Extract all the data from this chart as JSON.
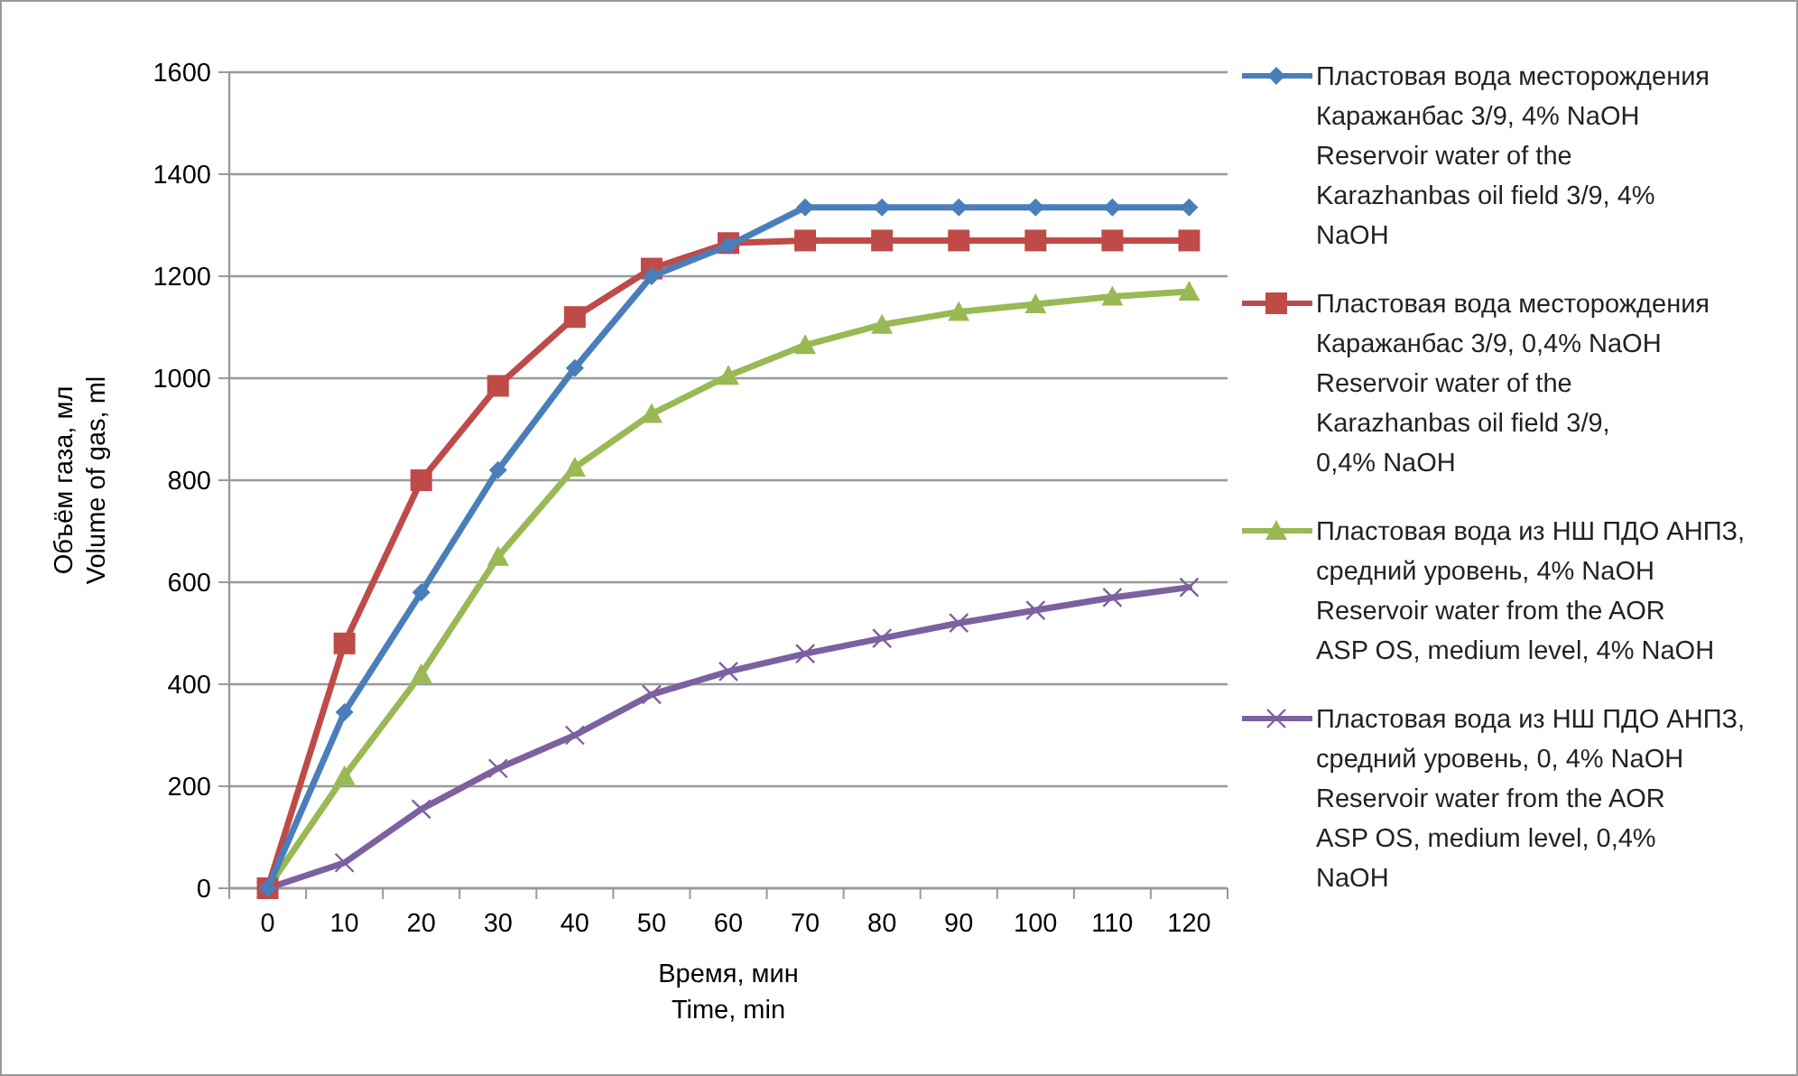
{
  "chart_data": {
    "type": "line",
    "xlabel": "Время, мин\nTime, min",
    "ylabel": "Объём газа, мл\nVolume of gas, ml",
    "categories": [
      "0",
      "10",
      "20",
      "30",
      "40",
      "50",
      "60",
      "70",
      "80",
      "90",
      "100",
      "110",
      "120"
    ],
    "ylim": [
      0,
      1600
    ],
    "yticks": [
      0,
      200,
      400,
      600,
      800,
      1000,
      1200,
      1400,
      1600
    ],
    "grid": "y",
    "legend": "right",
    "series": [
      {
        "name": "Пластовая вода месторождения Каражанбас 3/9, 4% NaOH\nReservoir water of the Karazhanbas oil field 3/9, 4% NaOH",
        "color": "#4a7ebb",
        "marker": "diamond",
        "values": [
          0,
          345,
          580,
          820,
          1020,
          1200,
          1260,
          1335,
          1335,
          1335,
          1335,
          1335,
          1335
        ]
      },
      {
        "name": "Пластовая вода месторождения Каражанбас 3/9, 0,4% NaOH\nReservoir water of the Karazhanbas oil field 3/9, 0,4% NaOH",
        "color": "#be4b48",
        "marker": "square",
        "values": [
          0,
          480,
          800,
          985,
          1120,
          1215,
          1265,
          1270,
          1270,
          1270,
          1270,
          1270,
          1270
        ]
      },
      {
        "name": "Пластовая вода из НШ ПДО АНПЗ, средний уровень, 4% NaOH\nReservoir water from the AOR ASP OS, medium level, 4% NaOH",
        "color": "#98b954",
        "marker": "triangle",
        "values": [
          0,
          220,
          420,
          650,
          825,
          930,
          1005,
          1065,
          1105,
          1130,
          1145,
          1160,
          1170
        ]
      },
      {
        "name": "Пластовая вода из НШ ПДО АНПЗ, средний уровень, 0, 4% NaOH\nReservoir water from the AOR ASP OS, medium level, 0,4% NaOH",
        "color": "#7d60a0",
        "marker": "cross",
        "values": [
          0,
          50,
          155,
          235,
          300,
          380,
          425,
          460,
          490,
          520,
          545,
          570,
          590
        ]
      }
    ]
  }
}
